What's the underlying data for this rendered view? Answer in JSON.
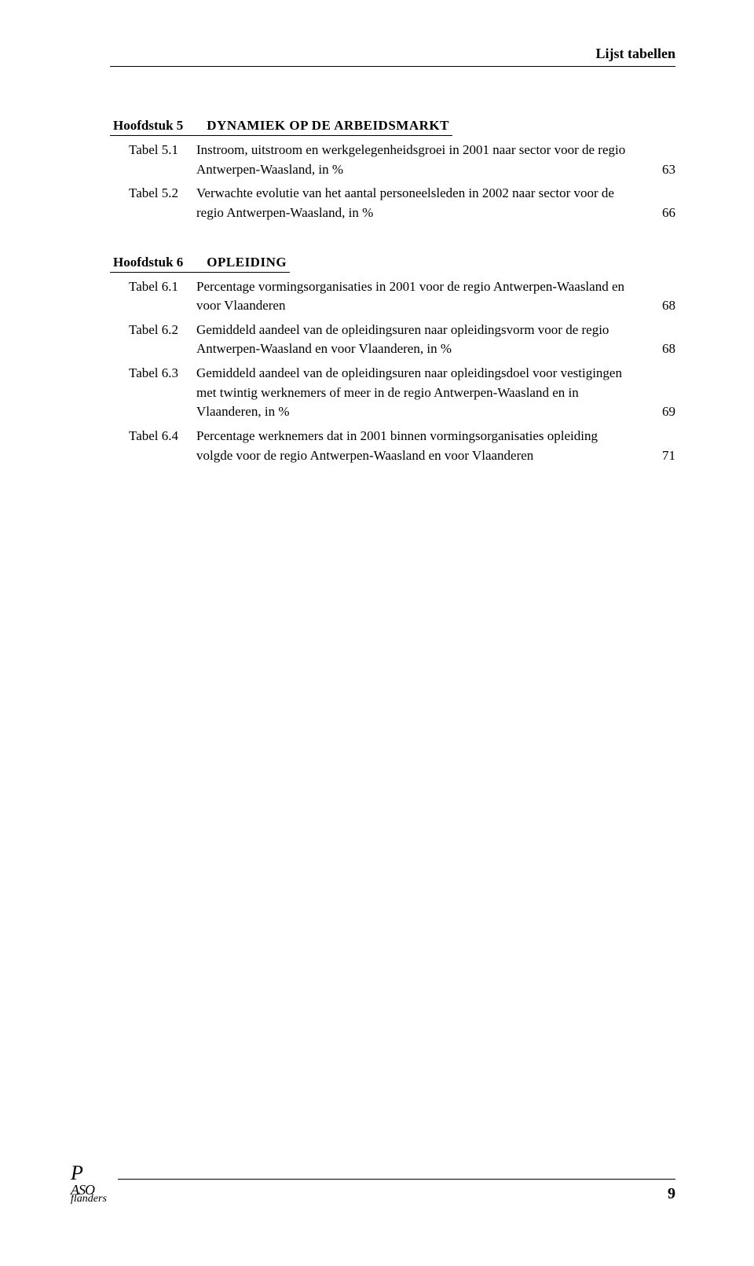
{
  "header": {
    "label": "Lijst tabellen"
  },
  "chapters": [
    {
      "label": "Hoofdstuk 5",
      "title": "DYNAMIEK OP DE ARBEIDSMARKT",
      "entries": [
        {
          "tabel": "Tabel 5.1",
          "desc": "Instroom, uitstroom en werkgelegenheidsgroei in 2001 naar sector voor de regio Antwerpen-Waasland, in %",
          "page": "63"
        },
        {
          "tabel": "Tabel 5.2",
          "desc": "Verwachte evolutie van het aantal personeelsleden in 2002 naar sector voor de regio Antwerpen-Waasland, in %",
          "page": "66"
        }
      ]
    },
    {
      "label": "Hoofdstuk 6",
      "title": "OPLEIDING",
      "entries": [
        {
          "tabel": "Tabel 6.1",
          "desc": "Percentage vormingsorganisaties in 2001 voor de regio Antwerpen-Waasland en voor Vlaanderen",
          "page": "68"
        },
        {
          "tabel": "Tabel 6.2",
          "desc": "Gemiddeld aandeel van de opleidingsuren naar opleidingsvorm voor de regio Antwerpen-Waasland en voor Vlaanderen, in %",
          "page": "68"
        },
        {
          "tabel": "Tabel 6.3",
          "desc": "Gemiddeld aandeel van de opleidingsuren naar opleidingsdoel voor vestigingen met twintig werknemers of meer in de regio Antwerpen-Waasland en in Vlaanderen, in %",
          "page": "69"
        },
        {
          "tabel": "Tabel 6.4",
          "desc": "Percentage werknemers dat in 2001 binnen vormingsorganisaties opleiding volgde voor de regio Antwerpen-Waasland en voor Vlaanderen",
          "page": "71"
        }
      ]
    }
  ],
  "footer": {
    "page": "9"
  }
}
